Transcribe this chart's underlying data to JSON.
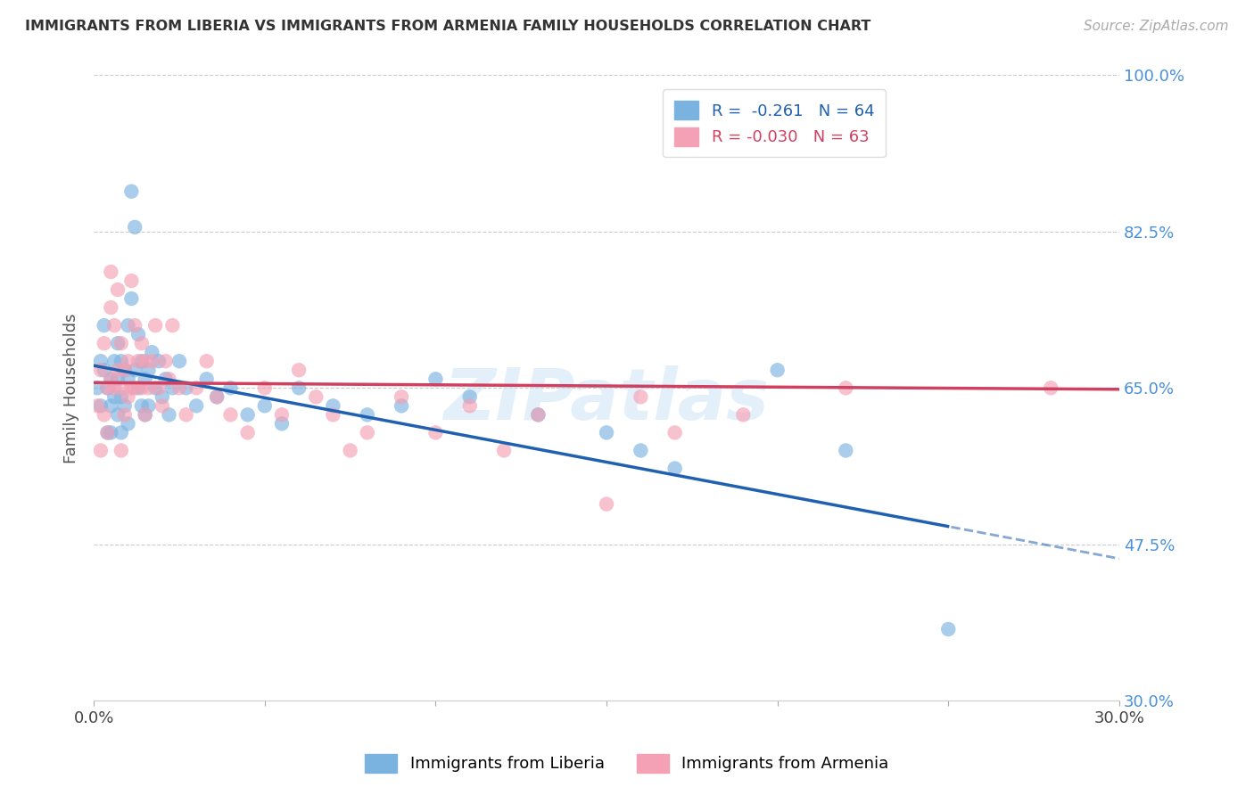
{
  "title": "IMMIGRANTS FROM LIBERIA VS IMMIGRANTS FROM ARMENIA FAMILY HOUSEHOLDS CORRELATION CHART",
  "source": "Source: ZipAtlas.com",
  "ylabel": "Family Households",
  "legend_liberia": "Immigrants from Liberia",
  "legend_armenia": "Immigrants from Armenia",
  "R_liberia": -0.261,
  "N_liberia": 64,
  "R_armenia": -0.03,
  "N_armenia": 63,
  "xlim": [
    0.0,
    0.3
  ],
  "ylim": [
    0.3,
    1.0
  ],
  "yticks": [
    1.0,
    0.825,
    0.65,
    0.475,
    0.3
  ],
  "ytick_labels": [
    "100.0%",
    "82.5%",
    "65.0%",
    "47.5%",
    "30.0%"
  ],
  "xticks": [
    0.0,
    0.05,
    0.1,
    0.15,
    0.2,
    0.25,
    0.3
  ],
  "xtick_labels": [
    "0.0%",
    "",
    "",
    "",
    "",
    "",
    "30.0%"
  ],
  "color_liberia": "#7bb3e0",
  "color_armenia": "#f4a0b5",
  "line_color_liberia": "#2060b0",
  "line_color_armenia": "#d04060",
  "watermark": "ZIPatlas",
  "background_color": "#ffffff",
  "liberia_x": [
    0.001,
    0.002,
    0.002,
    0.003,
    0.003,
    0.004,
    0.004,
    0.005,
    0.005,
    0.005,
    0.006,
    0.006,
    0.007,
    0.007,
    0.007,
    0.008,
    0.008,
    0.008,
    0.009,
    0.009,
    0.01,
    0.01,
    0.01,
    0.011,
    0.011,
    0.012,
    0.012,
    0.013,
    0.013,
    0.014,
    0.014,
    0.015,
    0.015,
    0.016,
    0.016,
    0.017,
    0.018,
    0.019,
    0.02,
    0.021,
    0.022,
    0.023,
    0.025,
    0.027,
    0.03,
    0.033,
    0.036,
    0.04,
    0.045,
    0.05,
    0.055,
    0.06,
    0.07,
    0.08,
    0.09,
    0.1,
    0.11,
    0.13,
    0.15,
    0.16,
    0.17,
    0.2,
    0.22,
    0.25
  ],
  "liberia_y": [
    0.65,
    0.68,
    0.63,
    0.72,
    0.67,
    0.65,
    0.6,
    0.66,
    0.63,
    0.6,
    0.68,
    0.64,
    0.7,
    0.66,
    0.62,
    0.68,
    0.64,
    0.6,
    0.67,
    0.63,
    0.72,
    0.66,
    0.61,
    0.75,
    0.87,
    0.83,
    0.67,
    0.71,
    0.65,
    0.68,
    0.63,
    0.66,
    0.62,
    0.67,
    0.63,
    0.69,
    0.65,
    0.68,
    0.64,
    0.66,
    0.62,
    0.65,
    0.68,
    0.65,
    0.63,
    0.66,
    0.64,
    0.65,
    0.62,
    0.63,
    0.61,
    0.65,
    0.63,
    0.62,
    0.63,
    0.66,
    0.64,
    0.62,
    0.6,
    0.58,
    0.56,
    0.67,
    0.58,
    0.38
  ],
  "armenia_x": [
    0.001,
    0.002,
    0.002,
    0.003,
    0.003,
    0.004,
    0.004,
    0.005,
    0.005,
    0.005,
    0.006,
    0.006,
    0.007,
    0.007,
    0.008,
    0.008,
    0.008,
    0.009,
    0.009,
    0.01,
    0.01,
    0.011,
    0.011,
    0.012,
    0.012,
    0.013,
    0.014,
    0.014,
    0.015,
    0.015,
    0.016,
    0.017,
    0.018,
    0.019,
    0.02,
    0.021,
    0.022,
    0.023,
    0.025,
    0.027,
    0.03,
    0.033,
    0.036,
    0.04,
    0.045,
    0.05,
    0.055,
    0.06,
    0.065,
    0.07,
    0.075,
    0.08,
    0.09,
    0.1,
    0.11,
    0.12,
    0.13,
    0.15,
    0.16,
    0.17,
    0.19,
    0.22,
    0.28
  ],
  "armenia_y": [
    0.63,
    0.58,
    0.67,
    0.62,
    0.7,
    0.65,
    0.6,
    0.74,
    0.78,
    0.66,
    0.72,
    0.65,
    0.76,
    0.67,
    0.7,
    0.65,
    0.58,
    0.67,
    0.62,
    0.68,
    0.64,
    0.77,
    0.65,
    0.72,
    0.65,
    0.68,
    0.7,
    0.65,
    0.68,
    0.62,
    0.65,
    0.68,
    0.72,
    0.65,
    0.63,
    0.68,
    0.66,
    0.72,
    0.65,
    0.62,
    0.65,
    0.68,
    0.64,
    0.62,
    0.6,
    0.65,
    0.62,
    0.67,
    0.64,
    0.62,
    0.58,
    0.6,
    0.64,
    0.6,
    0.63,
    0.58,
    0.62,
    0.52,
    0.64,
    0.6,
    0.62,
    0.65,
    0.65
  ]
}
